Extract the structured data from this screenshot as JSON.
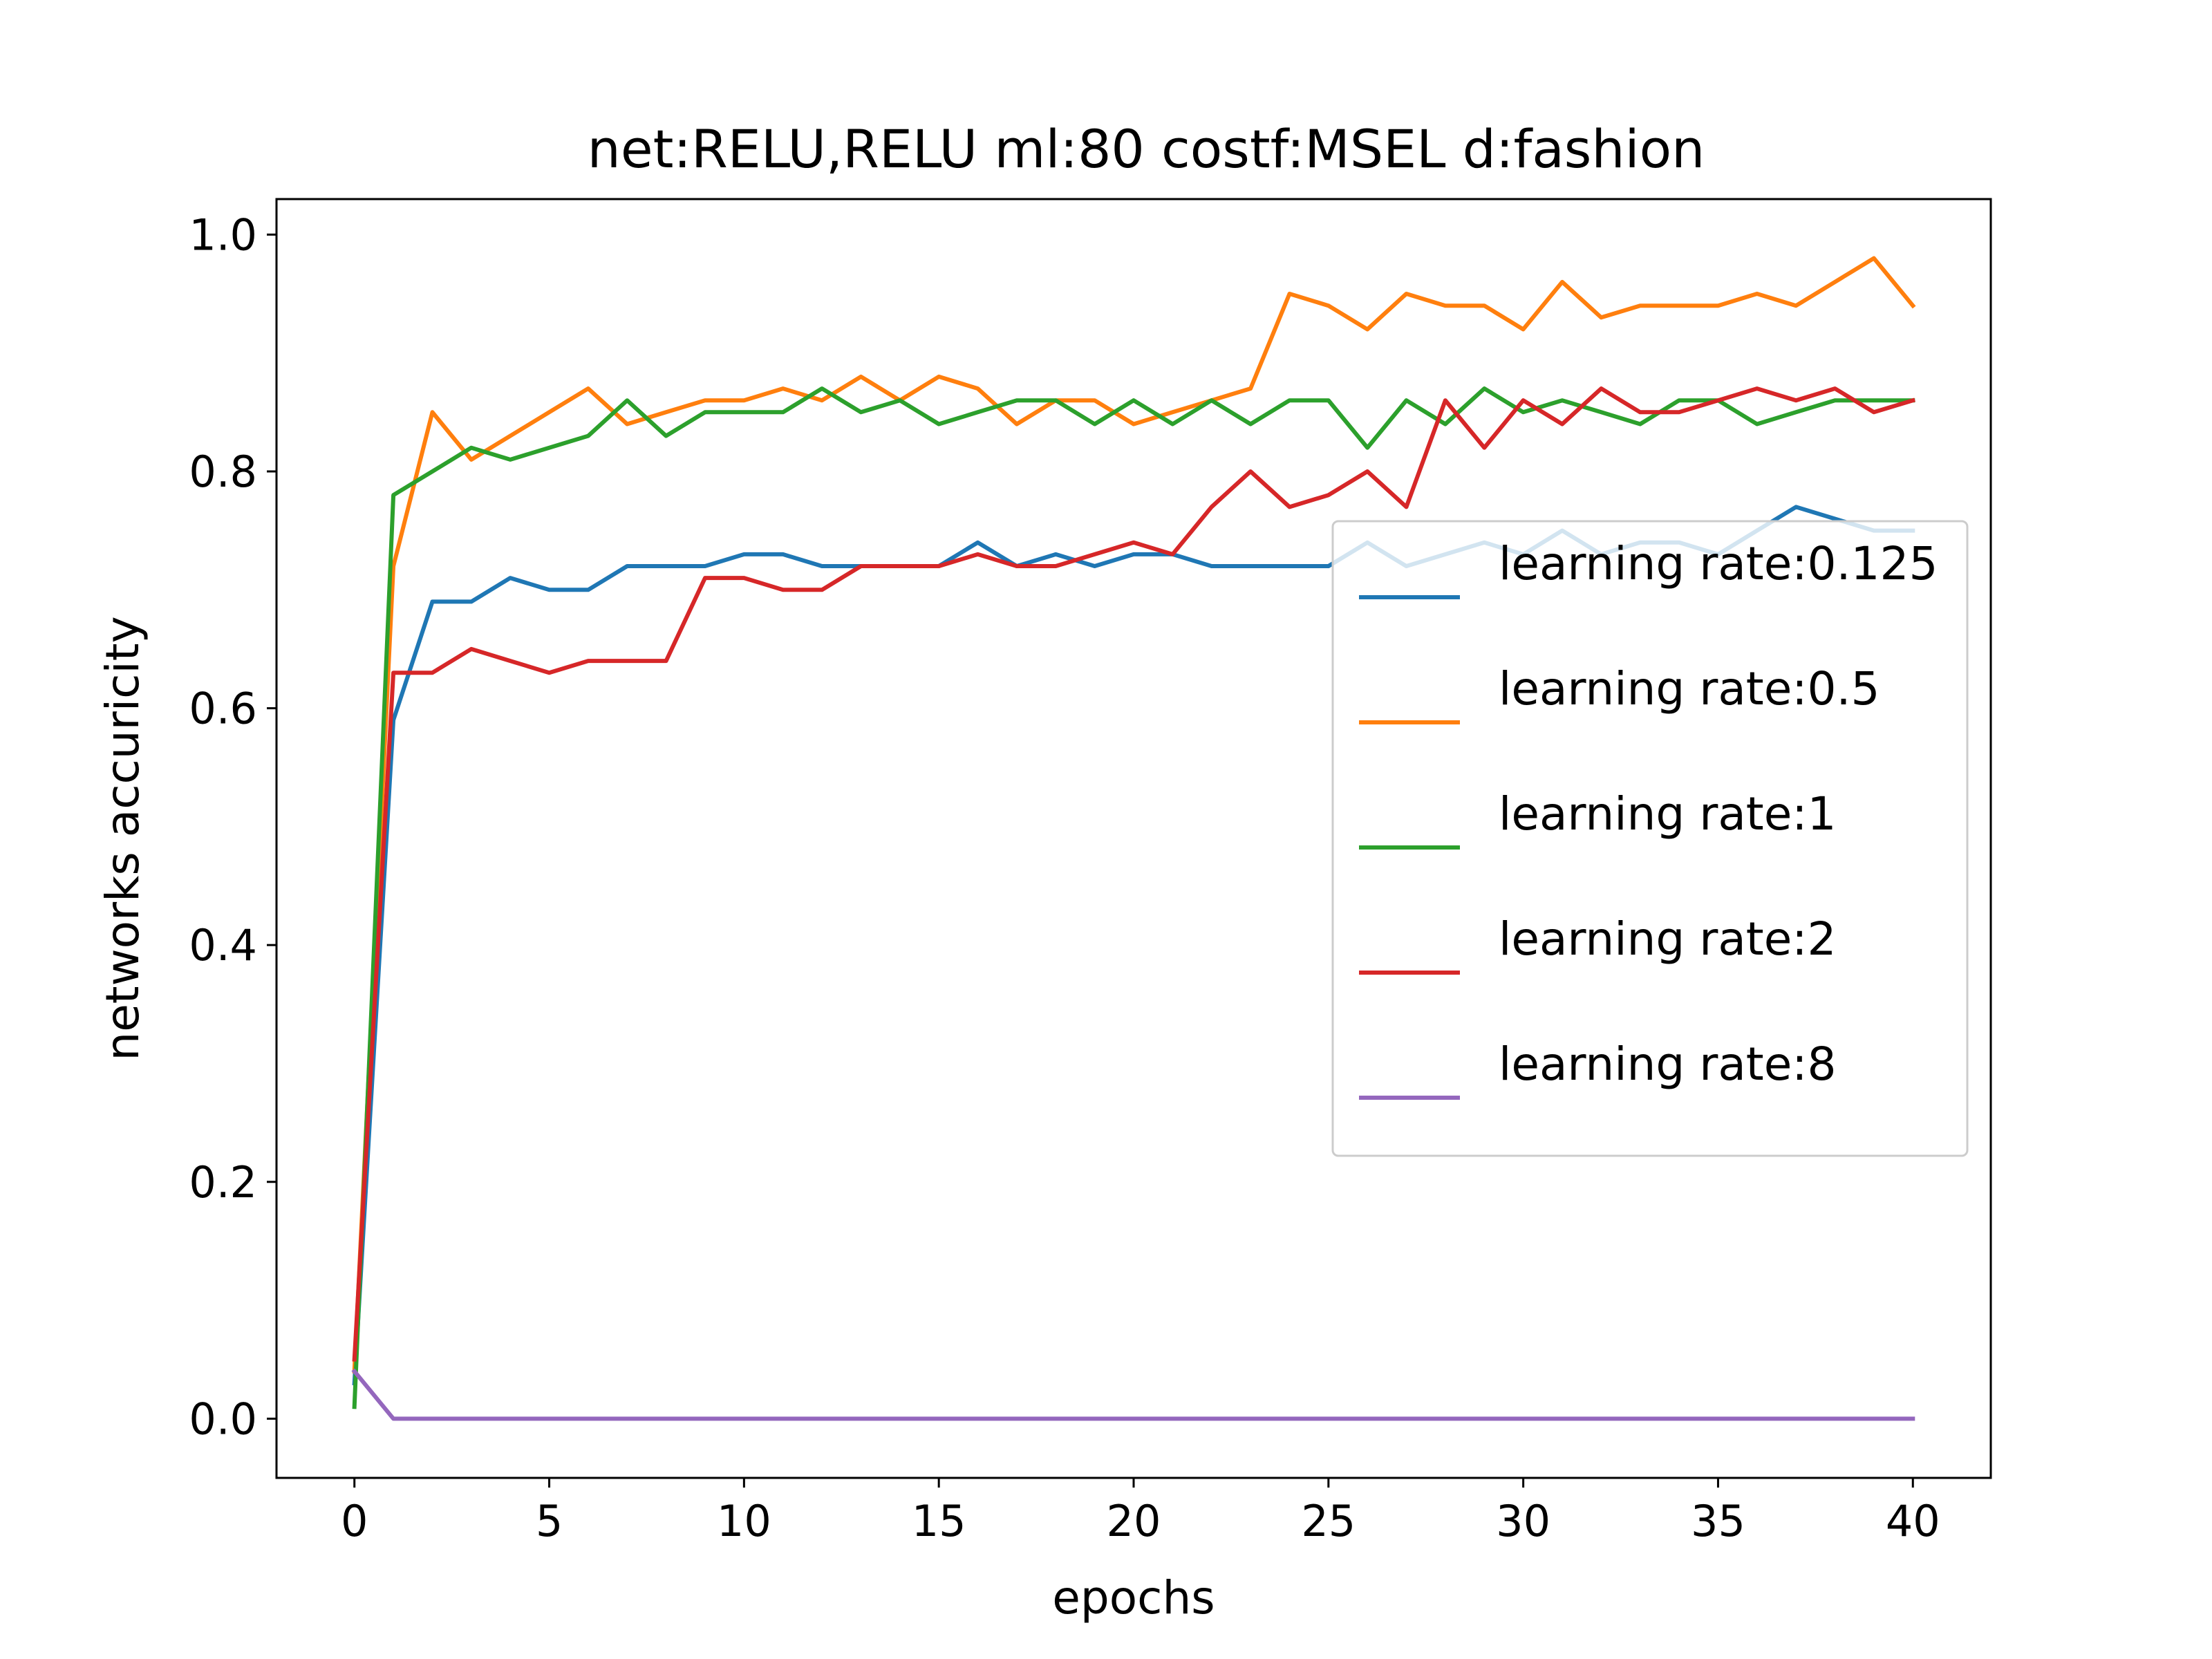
{
  "chart_data": {
    "type": "line",
    "title": "net:RELU,RELU ml:80 costf:MSEL d:fashion",
    "xlabel": "epochs",
    "ylabel": "networks accuricity",
    "xlim": [
      -2,
      42
    ],
    "ylim": [
      -0.05,
      1.03
    ],
    "xticks": [
      0,
      5,
      10,
      15,
      20,
      25,
      30,
      35,
      40
    ],
    "xtick_labels": [
      "0",
      "5",
      "10",
      "15",
      "20",
      "25",
      "30",
      "35",
      "40"
    ],
    "yticks": [
      0.0,
      0.2,
      0.4,
      0.6,
      0.8,
      1.0
    ],
    "ytick_labels": [
      "0.0",
      "0.2",
      "0.4",
      "0.6",
      "0.8",
      "1.0"
    ],
    "grid": false,
    "legend_position": "right",
    "x": [
      0,
      1,
      2,
      3,
      4,
      5,
      6,
      7,
      8,
      9,
      10,
      11,
      12,
      13,
      14,
      15,
      16,
      17,
      18,
      19,
      20,
      21,
      22,
      23,
      24,
      25,
      26,
      27,
      28,
      29,
      30,
      31,
      32,
      33,
      34,
      35,
      36,
      37,
      38,
      39,
      40
    ],
    "series": [
      {
        "name": "learning rate:0.125",
        "color": "#1f77b4",
        "values": [
          0.03,
          0.59,
          0.69,
          0.69,
          0.71,
          0.7,
          0.7,
          0.72,
          0.72,
          0.72,
          0.73,
          0.73,
          0.72,
          0.72,
          0.72,
          0.72,
          0.74,
          0.72,
          0.73,
          0.72,
          0.73,
          0.73,
          0.72,
          0.72,
          0.72,
          0.72,
          0.74,
          0.72,
          0.73,
          0.74,
          0.73,
          0.75,
          0.73,
          0.74,
          0.74,
          0.73,
          0.75,
          0.77,
          0.76,
          0.75,
          0.75
        ]
      },
      {
        "name": "learning rate:0.5",
        "color": "#ff7f0e",
        "values": [
          0.04,
          0.72,
          0.85,
          0.81,
          0.83,
          0.85,
          0.87,
          0.84,
          0.85,
          0.86,
          0.86,
          0.87,
          0.86,
          0.88,
          0.86,
          0.88,
          0.87,
          0.84,
          0.86,
          0.86,
          0.84,
          0.85,
          0.86,
          0.87,
          0.95,
          0.94,
          0.92,
          0.95,
          0.94,
          0.94,
          0.92,
          0.96,
          0.93,
          0.94,
          0.94,
          0.94,
          0.95,
          0.94,
          0.96,
          0.98,
          0.94
        ]
      },
      {
        "name": "learning rate:1",
        "color": "#2ca02c",
        "values": [
          0.01,
          0.78,
          0.8,
          0.82,
          0.81,
          0.82,
          0.83,
          0.86,
          0.83,
          0.85,
          0.85,
          0.85,
          0.87,
          0.85,
          0.86,
          0.84,
          0.85,
          0.86,
          0.86,
          0.84,
          0.86,
          0.84,
          0.86,
          0.84,
          0.86,
          0.86,
          0.82,
          0.86,
          0.84,
          0.87,
          0.85,
          0.86,
          0.85,
          0.84,
          0.86,
          0.86,
          0.84,
          0.85,
          0.86,
          0.86,
          0.86
        ]
      },
      {
        "name": "learning rate:2",
        "color": "#d62728",
        "values": [
          0.05,
          0.63,
          0.63,
          0.65,
          0.64,
          0.63,
          0.64,
          0.64,
          0.64,
          0.71,
          0.71,
          0.7,
          0.7,
          0.72,
          0.72,
          0.72,
          0.73,
          0.72,
          0.72,
          0.73,
          0.74,
          0.73,
          0.77,
          0.8,
          0.77,
          0.78,
          0.8,
          0.77,
          0.86,
          0.82,
          0.86,
          0.84,
          0.87,
          0.85,
          0.85,
          0.86,
          0.87,
          0.86,
          0.87,
          0.85,
          0.86
        ]
      },
      {
        "name": "learning rate:8",
        "color": "#9467bd",
        "values": [
          0.04,
          0.0,
          0.0,
          0.0,
          0.0,
          0.0,
          0.0,
          0.0,
          0.0,
          0.0,
          0.0,
          0.0,
          0.0,
          0.0,
          0.0,
          0.0,
          0.0,
          0.0,
          0.0,
          0.0,
          0.0,
          0.0,
          0.0,
          0.0,
          0.0,
          0.0,
          0.0,
          0.0,
          0.0,
          0.0,
          0.0,
          0.0,
          0.0,
          0.0,
          0.0,
          0.0,
          0.0,
          0.0,
          0.0,
          0.0,
          0.0
        ]
      }
    ]
  }
}
